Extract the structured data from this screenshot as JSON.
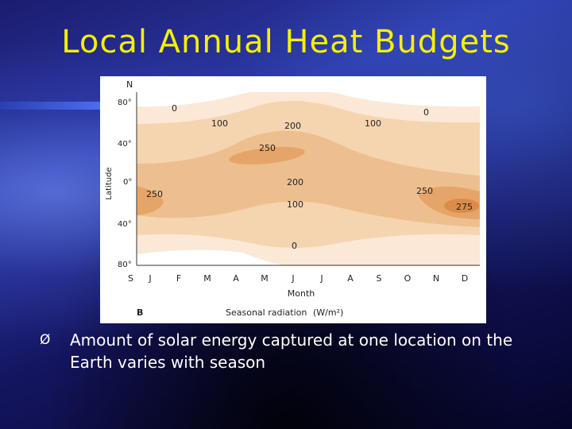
{
  "slide": {
    "title": "Local Annual Heat Budgets",
    "bullet_glyph": "Ø",
    "caption": "Amount of solar energy captured at one location on the Earth varies with season",
    "colors": {
      "title": "#f5f000",
      "text": "#ffffff"
    }
  },
  "figure": {
    "panel_label": "B",
    "legend_label": "Seasonal radiation",
    "legend_units": "(W/m²)",
    "y_axis_label": "Latitude",
    "x_axis_label": "Month",
    "north_label": "N",
    "south_label": "S",
    "lat_ticks": [
      "80°",
      "40°",
      "0°",
      "40°",
      "80°"
    ],
    "months": [
      "J",
      "F",
      "M",
      "A",
      "M",
      "J",
      "J",
      "A",
      "S",
      "O",
      "N",
      "D"
    ],
    "contour_labels": [
      "0",
      "100",
      "200",
      "100",
      "0",
      "250",
      "250",
      "200",
      "100",
      "250",
      "275",
      "0"
    ],
    "colors": [
      "#ffffff",
      "#fbe8d6",
      "#f5d4b0",
      "#eebf8e",
      "#e6a568",
      "#dc8c48"
    ]
  }
}
